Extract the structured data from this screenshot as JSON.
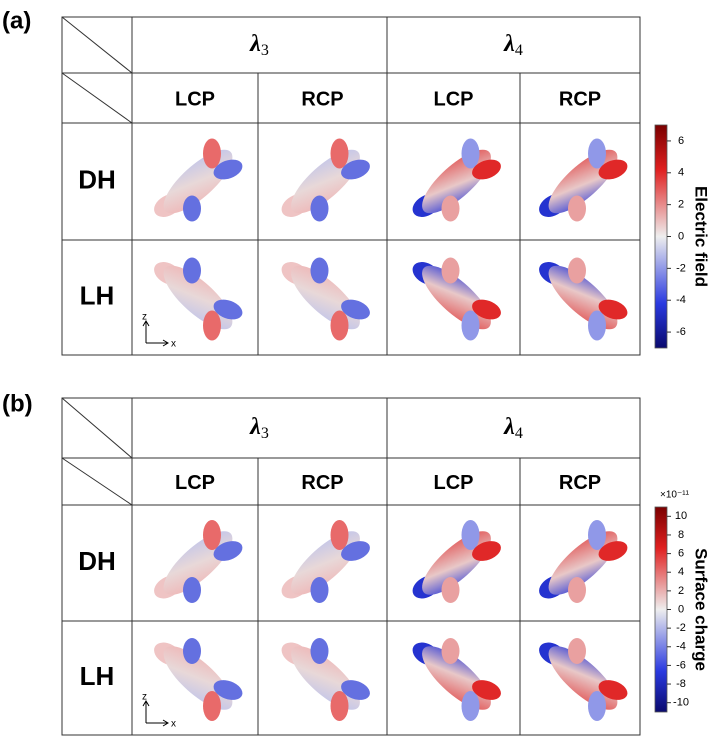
{
  "panels": [
    {
      "label": "(a)",
      "column_groups": [
        {
          "symbol": "λ",
          "subscript": "3"
        },
        {
          "symbol": "λ",
          "subscript": "4"
        }
      ],
      "columns": [
        "LCP",
        "RCP",
        "LCP",
        "RCP"
      ],
      "rows": [
        "DH",
        "LH"
      ],
      "axes": {
        "z": "z",
        "x": "x"
      },
      "colorbar": {
        "title": "Electric field",
        "range": [
          -7,
          7
        ],
        "ticks": [
          6,
          4,
          2,
          0,
          -2,
          -4,
          -6
        ]
      }
    },
    {
      "label": "(b)",
      "column_groups": [
        {
          "symbol": "λ",
          "subscript": "3"
        },
        {
          "symbol": "λ",
          "subscript": "4"
        }
      ],
      "columns": [
        "LCP",
        "RCP",
        "LCP",
        "RCP"
      ],
      "rows": [
        "DH",
        "LH"
      ],
      "axes": {
        "z": "z",
        "x": "x"
      },
      "colorbar": {
        "title": "Surface charge",
        "multiplier": "×10⁻¹¹",
        "range": [
          -11,
          11
        ],
        "ticks": [
          10,
          8,
          6,
          4,
          2,
          0,
          -2,
          -4,
          -6,
          -8,
          -10
        ]
      }
    }
  ]
}
